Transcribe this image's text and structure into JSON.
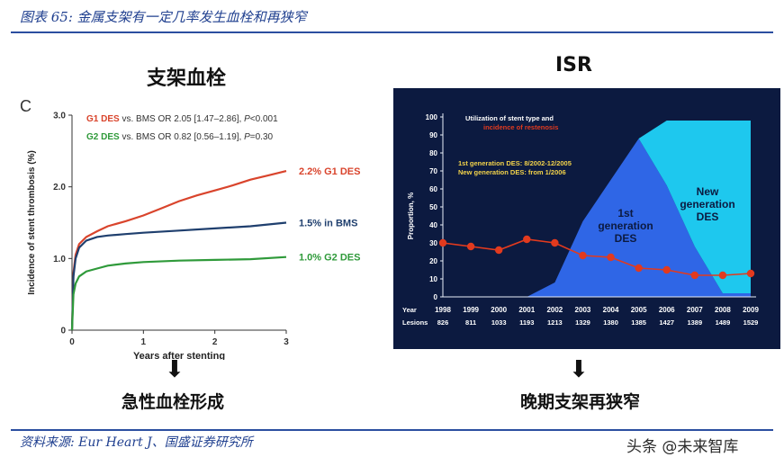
{
  "header": {
    "title": "图表 65: 金属支架有一定几率发生血栓和再狭窄"
  },
  "footer": {
    "source": "资料来源: Eur Heart J、国盛证券研究所",
    "watermark": "头条 @未来智库"
  },
  "left_panel": {
    "title": "支架血栓",
    "caption": "急性血栓形成",
    "arrow": "⬇"
  },
  "right_panel": {
    "title": "ISR",
    "caption": "晚期支架再狭窄",
    "arrow": "⬇"
  },
  "colors": {
    "g1": "#d9442c",
    "bms": "#1f3f6e",
    "g2": "#2f9a3a",
    "right_bg": "#0c1a40",
    "g1_area": "#2f66e6",
    "new_area": "#1ec8ee",
    "isr_line": "#e23a1e"
  },
  "chart_data": [
    {
      "type": "line",
      "panel_letter": "C",
      "xlabel": "Years after stenting",
      "ylabel": "Incidence of stent thrombosis (%)",
      "xlim": [
        0,
        3
      ],
      "ylim": [
        0,
        3.0
      ],
      "xticks": [
        "0",
        "1",
        "2",
        "3"
      ],
      "yticks": [
        "0",
        "1.0",
        "2.0",
        "3.0"
      ],
      "annotations": [
        {
          "prefix": "G1 DES",
          "rest": " vs. BMS OR 2.05 [1.47–2.86], ",
          "p": "P",
          "tail": "<0.001",
          "color": "#d9442c"
        },
        {
          "prefix": "G2 DES",
          "rest": " vs. BMS OR 0.82 [0.56–1.19], ",
          "p": "P",
          "tail": "=0.30",
          "color": "#2f9a3a"
        }
      ],
      "series": [
        {
          "name": "2.2% G1 DES",
          "color": "#d9442c",
          "x": [
            0,
            0.02,
            0.05,
            0.1,
            0.2,
            0.35,
            0.5,
            0.75,
            1.0,
            1.25,
            1.5,
            1.75,
            2.0,
            2.25,
            2.5,
            2.75,
            3.0
          ],
          "y": [
            0.0,
            0.8,
            1.05,
            1.2,
            1.3,
            1.38,
            1.45,
            1.52,
            1.6,
            1.7,
            1.8,
            1.88,
            1.95,
            2.02,
            2.1,
            2.16,
            2.22
          ]
        },
        {
          "name": "1.5% in BMS",
          "color": "#1f3f6e",
          "x": [
            0,
            0.02,
            0.05,
            0.1,
            0.2,
            0.35,
            0.5,
            0.75,
            1.0,
            1.5,
            2.0,
            2.5,
            3.0
          ],
          "y": [
            0.0,
            0.75,
            1.0,
            1.15,
            1.25,
            1.3,
            1.32,
            1.34,
            1.36,
            1.39,
            1.42,
            1.45,
            1.5
          ]
        },
        {
          "name": "1.0% G2 DES",
          "color": "#2f9a3a",
          "x": [
            0,
            0.02,
            0.05,
            0.1,
            0.2,
            0.35,
            0.5,
            0.75,
            1.0,
            1.5,
            2.0,
            2.5,
            3.0
          ],
          "y": [
            0.0,
            0.5,
            0.65,
            0.75,
            0.82,
            0.86,
            0.9,
            0.93,
            0.95,
            0.97,
            0.98,
            0.99,
            1.02
          ]
        }
      ]
    },
    {
      "type": "area",
      "title": "Utilization of stent type and",
      "subtitle": "incidence of restenosis",
      "legend_lines": [
        "1st generation DES: 8/2002-12/2005",
        "New generation DES: from 1/2006"
      ],
      "ylabel": "Proportion, %",
      "ylim": [
        0,
        100
      ],
      "yticks": [
        "0",
        "10",
        "20",
        "30",
        "40",
        "50",
        "60",
        "70",
        "80",
        "90",
        "100"
      ],
      "row_labels": [
        "Year",
        "Lesions"
      ],
      "categories": [
        "1998",
        "1999",
        "2000",
        "2001",
        "2002",
        "2003",
        "2004",
        "2005",
        "2006",
        "2007",
        "2008",
        "2009"
      ],
      "lesions": [
        "826",
        "811",
        "1033",
        "1193",
        "1213",
        "1329",
        "1380",
        "1385",
        "1427",
        "1389",
        "1489",
        "1529"
      ],
      "series": [
        {
          "name": "1st generation DES",
          "label_lines": [
            "1st",
            "generation",
            "DES"
          ],
          "color": "#2f66e6",
          "values": [
            0,
            0,
            0,
            0,
            8,
            42,
            65,
            88,
            62,
            28,
            2,
            2
          ]
        },
        {
          "name": "New generation DES",
          "label_lines": [
            "New",
            "generation",
            "DES"
          ],
          "color": "#1ec8ee",
          "values": [
            0,
            0,
            0,
            0,
            0,
            0,
            0,
            0,
            36,
            70,
            96,
            96
          ]
        },
        {
          "name": "restenosis",
          "color": "#e23a1e",
          "values": [
            30,
            28,
            26,
            32,
            30,
            23,
            22,
            16,
            15,
            12,
            12,
            13
          ]
        }
      ]
    }
  ]
}
